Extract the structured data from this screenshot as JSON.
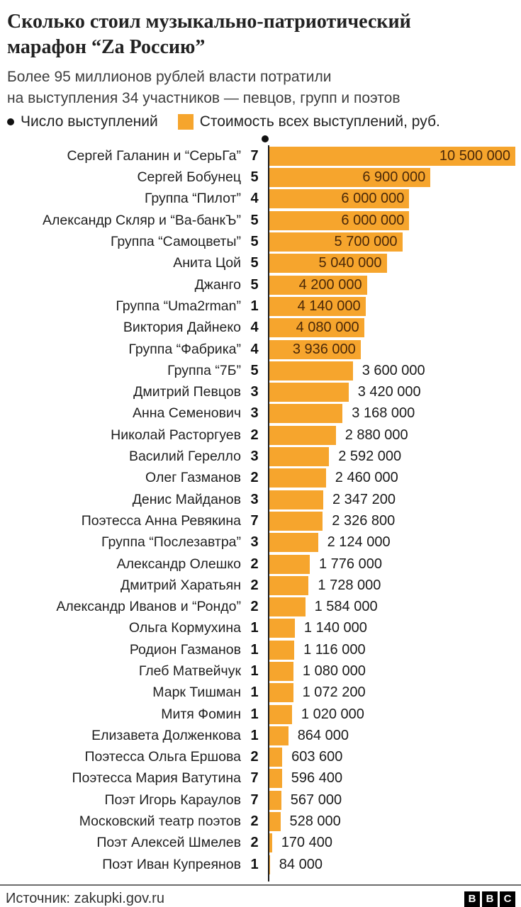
{
  "header": {
    "title": "Сколько стоил музыкально-патриотический марафон “Za Россию”",
    "subtitle_lines": [
      "Более 95 миллионов рублей власти потратили",
      "на выступления 34 участников — певцов, групп и поэтов"
    ]
  },
  "legend": {
    "count_label": "Число выступлений",
    "cost_label": "Стоимость всех выступлений, руб."
  },
  "chart_data": {
    "type": "bar",
    "orientation": "horizontal",
    "value_axis_max": 10500000,
    "bar_color": "#f6a52d",
    "inside_label_color": "#4a2808",
    "grid": false,
    "rows": [
      {
        "name": "Сергей Галанин и “СерьГа”",
        "count": 7,
        "value": 10500000,
        "value_label": "10 500 000"
      },
      {
        "name": "Сергей Бобунец",
        "count": 5,
        "value": 6900000,
        "value_label": "6 900 000"
      },
      {
        "name": "Группа “Пилот”",
        "count": 4,
        "value": 6000000,
        "value_label": "6 000 000"
      },
      {
        "name": "Александр Скляр и “Ва-банкЪ”",
        "count": 5,
        "value": 6000000,
        "value_label": "6 000 000"
      },
      {
        "name": "Группа “Самоцветы”",
        "count": 5,
        "value": 5700000,
        "value_label": "5 700 000"
      },
      {
        "name": "Анита Цой",
        "count": 5,
        "value": 5040000,
        "value_label": "5 040 000"
      },
      {
        "name": "Джанго",
        "count": 5,
        "value": 4200000,
        "value_label": "4 200 000"
      },
      {
        "name": "Группа “Uma2rman”",
        "count": 1,
        "value": 4140000,
        "value_label": "4 140 000"
      },
      {
        "name": "Виктория Дайнеко",
        "count": 4,
        "value": 4080000,
        "value_label": "4 080 000"
      },
      {
        "name": "Группа “Фабрика”",
        "count": 4,
        "value": 3936000,
        "value_label": "3 936 000"
      },
      {
        "name": "Группа “7Б”",
        "count": 5,
        "value": 3600000,
        "value_label": "3 600 000"
      },
      {
        "name": "Дмитрий Певцов",
        "count": 3,
        "value": 3420000,
        "value_label": "3 420 000"
      },
      {
        "name": "Анна Семенович",
        "count": 3,
        "value": 3168000,
        "value_label": "3 168 000"
      },
      {
        "name": "Николай Расторгуев",
        "count": 2,
        "value": 2880000,
        "value_label": "2 880 000"
      },
      {
        "name": "Василий Герелло",
        "count": 3,
        "value": 2592000,
        "value_label": "2 592 000"
      },
      {
        "name": "Олег Газманов",
        "count": 2,
        "value": 2460000,
        "value_label": "2 460 000"
      },
      {
        "name": "Денис Майданов",
        "count": 3,
        "value": 2347200,
        "value_label": "2 347 200"
      },
      {
        "name": "Поэтесса Анна Ревякина",
        "count": 7,
        "value": 2326800,
        "value_label": "2 326 800"
      },
      {
        "name": "Группа “Послезавтра”",
        "count": 3,
        "value": 2124000,
        "value_label": "2 124 000"
      },
      {
        "name": "Александр Олешко",
        "count": 2,
        "value": 1776000,
        "value_label": "1 776 000"
      },
      {
        "name": "Дмитрий Харатьян",
        "count": 2,
        "value": 1728000,
        "value_label": "1 728 000"
      },
      {
        "name": "Александр Иванов и “Рондо”",
        "count": 2,
        "value": 1584000,
        "value_label": "1 584 000"
      },
      {
        "name": "Ольга Кормухина",
        "count": 1,
        "value": 1140000,
        "value_label": "1 140 000"
      },
      {
        "name": "Родион Газманов",
        "count": 1,
        "value": 1116000,
        "value_label": "1 116 000"
      },
      {
        "name": "Глеб Матвейчук",
        "count": 1,
        "value": 1080000,
        "value_label": "1 080 000"
      },
      {
        "name": "Марк Тишман",
        "count": 1,
        "value": 1072200,
        "value_label": "1 072 200"
      },
      {
        "name": "Митя Фомин",
        "count": 1,
        "value": 1020000,
        "value_label": "1 020 000"
      },
      {
        "name": "Елизавета Долженкова",
        "count": 1,
        "value": 864000,
        "value_label": "864 000"
      },
      {
        "name": "Поэтесса Ольга Ершова",
        "count": 2,
        "value": 603600,
        "value_label": "603 600"
      },
      {
        "name": "Поэтесса Мария Ватутина",
        "count": 7,
        "value": 596400,
        "value_label": "596 400"
      },
      {
        "name": "Поэт Игорь Караулов",
        "count": 7,
        "value": 567000,
        "value_label": "567 000"
      },
      {
        "name": "Московский театр поэтов",
        "count": 2,
        "value": 528000,
        "value_label": "528 000"
      },
      {
        "name": "Поэт Алексей Шмелев",
        "count": 2,
        "value": 170400,
        "value_label": "170 400"
      },
      {
        "name": "Поэт Иван Купреянов",
        "count": 1,
        "value": 84000,
        "value_label": "84 000"
      }
    ]
  },
  "footer": {
    "source": "Источник: zakupki.gov.ru",
    "logo_letters": [
      "B",
      "B",
      "C"
    ]
  }
}
